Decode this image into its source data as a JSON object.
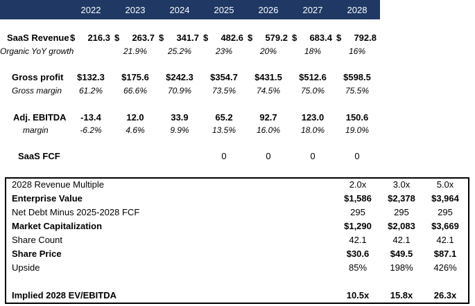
{
  "years": [
    "2022",
    "2023",
    "2024",
    "2025",
    "2026",
    "2027",
    "2028"
  ],
  "saas_revenue": {
    "label": "SaaS Revenue",
    "values": [
      "216.3",
      "263.7",
      "341.7",
      "482.6",
      "579.2",
      "683.4",
      "792.8"
    ],
    "currency": "$"
  },
  "organic_growth": {
    "label": "Organic YoY growth",
    "values": [
      "",
      "21.9%",
      "25.2%",
      "23%",
      "20%",
      "18%",
      "16%"
    ]
  },
  "gross_profit": {
    "label": "Gross profit",
    "values": [
      "$132.3",
      "$175.6",
      "$242.3",
      "$354.7",
      "$431.5",
      "$512.6",
      "$598.5"
    ]
  },
  "gross_margin": {
    "label": "Gross margin",
    "values": [
      "61.2%",
      "66.6%",
      "70.9%",
      "73.5%",
      "74.5%",
      "75.0%",
      "75.5%"
    ]
  },
  "adj_ebitda": {
    "label": "Adj. EBITDA",
    "values": [
      "-13.4",
      "12.0",
      "33.9",
      "65.2",
      "92.7",
      "123.0",
      "150.6"
    ]
  },
  "ebitda_margin": {
    "label": "margin",
    "values": [
      "-6.2%",
      "4.6%",
      "9.9%",
      "13.5%",
      "16.0%",
      "18.0%",
      "19.0%"
    ]
  },
  "saas_fcf": {
    "label": "SaaS FCF",
    "values": [
      "",
      "",
      "",
      "0",
      "0",
      "0",
      "0"
    ]
  },
  "valuation": {
    "rows": [
      {
        "label": "2028 Revenue Multiple",
        "bold": false,
        "values": [
          "2.0x",
          "3.0x",
          "5.0x"
        ]
      },
      {
        "label": "Enterprise Value",
        "bold": true,
        "values": [
          "$1,586",
          "$2,378",
          "$3,964"
        ]
      },
      {
        "label": "Net Debt Minus 2025-2028 FCF",
        "bold": false,
        "values": [
          "295",
          "295",
          "295"
        ]
      },
      {
        "label": "Market Capitalization",
        "bold": true,
        "values": [
          "$1,290",
          "$2,083",
          "$3,669"
        ]
      },
      {
        "label": "Share Count",
        "bold": false,
        "values": [
          "42.1",
          "42.1",
          "42.1"
        ]
      },
      {
        "label": "Share Price",
        "bold": true,
        "values": [
          "$30.6",
          "$49.5",
          "$87.1"
        ]
      },
      {
        "label": "Upside",
        "bold": false,
        "values": [
          "85%",
          "198%",
          "426%"
        ]
      }
    ],
    "implied": {
      "label": "Implied 2028 EV/EBITDA",
      "values": [
        "10.5x",
        "15.8x",
        "26.3x"
      ]
    }
  }
}
